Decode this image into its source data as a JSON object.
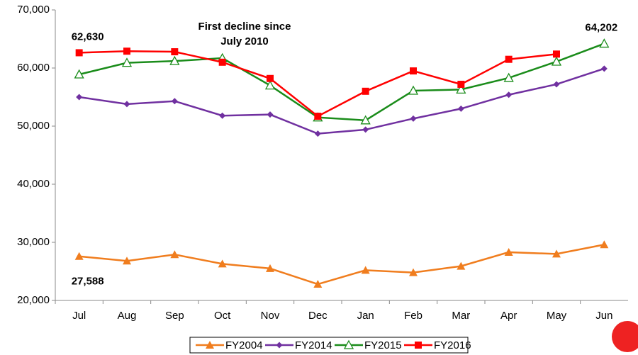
{
  "chart_data": {
    "type": "line",
    "annotation": [
      "First decline since",
      "July 2010"
    ],
    "annotation_color": "#1a1ab4",
    "categories": [
      "Jul",
      "Aug",
      "Sep",
      "Oct",
      "Nov",
      "Dec",
      "Jan",
      "Feb",
      "Mar",
      "Apr",
      "May",
      "Jun"
    ],
    "series": [
      {
        "name": "FY2004",
        "color": "#f07d1e",
        "marker": "triangle",
        "values": [
          27588,
          26800,
          27900,
          26300,
          25500,
          22800,
          25200,
          24800,
          25900,
          28300,
          28000,
          29600
        ],
        "value_labels": [
          "27,588",
          null,
          null,
          null,
          null,
          null,
          null,
          null,
          null,
          null,
          null,
          null
        ]
      },
      {
        "name": "FY2014",
        "color": "#7030a0",
        "marker": "diamond",
        "values": [
          55000,
          53800,
          54300,
          51800,
          52000,
          48700,
          49400,
          51300,
          53000,
          55400,
          57200,
          59900
        ]
      },
      {
        "name": "FY2015",
        "color": "#1a8c1a",
        "marker": "open-triangle",
        "values": [
          58900,
          60900,
          61200,
          61700,
          57000,
          51500,
          51000,
          56100,
          56300,
          58300,
          61100,
          64202
        ],
        "value_labels": [
          null,
          null,
          null,
          null,
          null,
          null,
          null,
          null,
          null,
          null,
          null,
          "64,202"
        ]
      },
      {
        "name": "FY2016",
        "color": "#ff0000",
        "marker": "square",
        "values": [
          62630,
          62900,
          62800,
          61000,
          58200,
          51700,
          56000,
          59500,
          57200,
          61500,
          62400,
          null
        ],
        "value_labels": [
          "62,630",
          null,
          null,
          null,
          null,
          null,
          null,
          null,
          null,
          null,
          null,
          null
        ]
      }
    ],
    "ylim": [
      20000,
      70000
    ],
    "yticks": [
      {
        "value": 20000,
        "label": "20,000"
      },
      {
        "value": 30000,
        "label": "30,000"
      },
      {
        "value": 40000,
        "label": "40,000"
      },
      {
        "value": 50000,
        "label": "50,000"
      },
      {
        "value": 60000,
        "label": "60,000"
      },
      {
        "value": 70000,
        "label": "70,000"
      }
    ],
    "grid": false,
    "legend": "bottom"
  }
}
